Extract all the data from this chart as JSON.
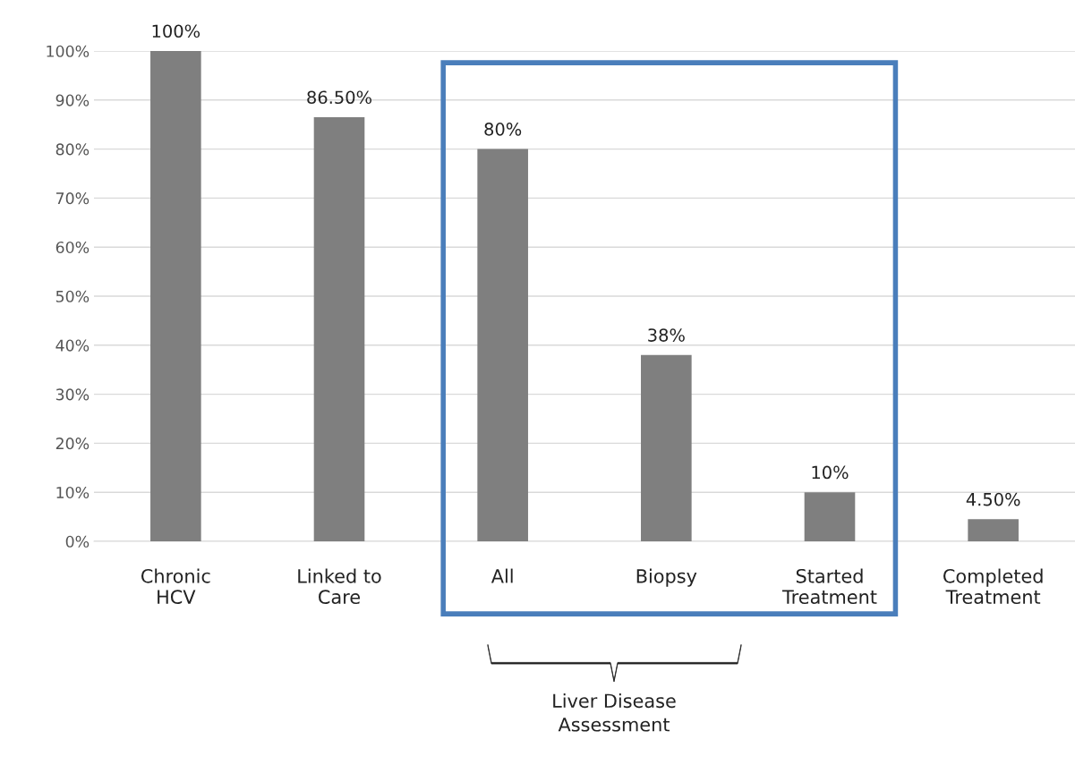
{
  "chart_data": {
    "type": "bar",
    "categories": [
      "Chronic\nHCV",
      "Linked to\nCare",
      "All",
      "Biopsy",
      "Started\nTreatment",
      "Completed\nTreatment"
    ],
    "values": [
      100,
      86.5,
      80,
      38,
      10,
      4.5
    ],
    "value_labels": [
      "100%",
      "86.50%",
      "80%",
      "38%",
      "10%",
      "4.50%"
    ],
    "color": "#7f7f7f",
    "ylim": [
      0,
      100
    ],
    "yticks": [
      {
        "value": 0,
        "label": "0%"
      },
      {
        "value": 10,
        "label": "10%"
      },
      {
        "value": 20,
        "label": "20%"
      },
      {
        "value": 30,
        "label": "30%"
      },
      {
        "value": 40,
        "label": "40%"
      },
      {
        "value": 50,
        "label": "50%"
      },
      {
        "value": 60,
        "label": "60%"
      },
      {
        "value": 70,
        "label": "70%"
      },
      {
        "value": 80,
        "label": "80%"
      },
      {
        "value": 90,
        "label": "90%"
      },
      {
        "value": 100,
        "label": "100%"
      }
    ],
    "grid": "y",
    "annotations": [
      "Liver Disease\nAssessment"
    ]
  }
}
